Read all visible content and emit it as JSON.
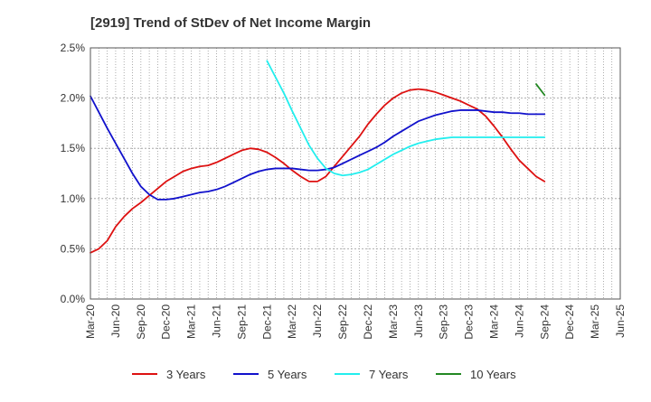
{
  "chart_data": {
    "type": "line",
    "title": "[2919]  Trend of StDev of Net Income Margin",
    "xlabel": "",
    "ylabel": "",
    "x_ticks": [
      "Mar-20",
      "Jun-20",
      "Sep-20",
      "Dec-20",
      "Mar-21",
      "Jun-21",
      "Sep-21",
      "Dec-21",
      "Mar-22",
      "Jun-22",
      "Sep-22",
      "Dec-22",
      "Mar-23",
      "Jun-23",
      "Sep-23",
      "Dec-23",
      "Mar-24",
      "Jun-24",
      "Sep-24",
      "Dec-24",
      "Mar-25",
      "Jun-25"
    ],
    "y_ticks": [
      "0.0%",
      "0.5%",
      "1.0%",
      "1.5%",
      "2.0%",
      "2.5%"
    ],
    "y_tick_values": [
      0,
      0.5,
      1.0,
      1.5,
      2.0,
      2.5
    ],
    "ylim": [
      0,
      2.5
    ],
    "grid": true,
    "legend_position": "bottom",
    "series": [
      {
        "name": "3 Years",
        "color": "#dd1111",
        "values": [
          0.46,
          0.5,
          0.58,
          0.72,
          0.82,
          0.9,
          0.96,
          1.03,
          1.1,
          1.17,
          1.22,
          1.27,
          1.3,
          1.32,
          1.33,
          1.36,
          1.4,
          1.44,
          1.48,
          1.5,
          1.49,
          1.46,
          1.41,
          1.35,
          1.28,
          1.22,
          1.17,
          1.17,
          1.22,
          1.32,
          1.42,
          1.52,
          1.62,
          1.74,
          1.84,
          1.93,
          2.0,
          2.05,
          2.08,
          2.09,
          2.08,
          2.06,
          2.03,
          2.0,
          1.97,
          1.93,
          1.89,
          1.82,
          1.72,
          1.61,
          1.49,
          1.38,
          1.3,
          1.22,
          1.17
        ]
      },
      {
        "name": "5 Years",
        "color": "#1111cc",
        "values": [
          2.02,
          1.86,
          1.7,
          1.55,
          1.4,
          1.25,
          1.12,
          1.04,
          0.99,
          0.99,
          1.0,
          1.02,
          1.04,
          1.06,
          1.07,
          1.09,
          1.12,
          1.16,
          1.2,
          1.24,
          1.27,
          1.29,
          1.3,
          1.3,
          1.3,
          1.29,
          1.28,
          1.28,
          1.29,
          1.31,
          1.35,
          1.39,
          1.43,
          1.47,
          1.51,
          1.56,
          1.62,
          1.67,
          1.72,
          1.77,
          1.8,
          1.83,
          1.85,
          1.87,
          1.88,
          1.88,
          1.88,
          1.87,
          1.86,
          1.86,
          1.85,
          1.85,
          1.84,
          1.84,
          1.84
        ]
      },
      {
        "name": "7 Years",
        "color": "#22eeee",
        "values": [
          null,
          null,
          null,
          null,
          null,
          null,
          null,
          null,
          null,
          null,
          null,
          null,
          null,
          null,
          null,
          null,
          null,
          null,
          null,
          null,
          null,
          2.37,
          2.21,
          2.05,
          1.87,
          1.7,
          1.53,
          1.4,
          1.3,
          1.25,
          1.23,
          1.24,
          1.26,
          1.29,
          1.34,
          1.39,
          1.44,
          1.48,
          1.52,
          1.55,
          1.57,
          1.59,
          1.6,
          1.61,
          1.61,
          1.61,
          1.61,
          1.61,
          1.61,
          1.61,
          1.61,
          1.61,
          1.61,
          1.61,
          1.61
        ]
      },
      {
        "name": "10 Years",
        "color": "#228822",
        "values": [
          null,
          null,
          null,
          null,
          null,
          null,
          null,
          null,
          null,
          null,
          null,
          null,
          null,
          null,
          null,
          null,
          null,
          null,
          null,
          null,
          null,
          null,
          null,
          null,
          null,
          null,
          null,
          null,
          null,
          null,
          null,
          null,
          null,
          null,
          null,
          null,
          null,
          null,
          null,
          null,
          null,
          null,
          null,
          null,
          null,
          null,
          null,
          null,
          null,
          null,
          null,
          null,
          null,
          2.14,
          2.03
        ]
      }
    ]
  }
}
